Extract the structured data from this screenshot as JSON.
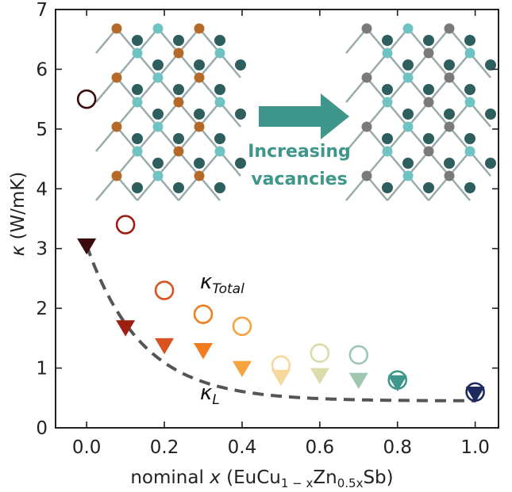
{
  "chart_data": {
    "type": "scatter",
    "xlabel_prefix": "nominal ",
    "xlabel_var": "x",
    "xlabel_formula": "(EuCu",
    "xlabel_sub1": "1 − x",
    "xlabel_mid": "Zn",
    "xlabel_sub2": "0.5x",
    "xlabel_suffix": "Sb)",
    "ylabel_symbol": "κ",
    "ylabel_units": "(W/mK)",
    "xlim": [
      -0.08,
      1.06
    ],
    "ylim": [
      0,
      7
    ],
    "xticks": [
      0.0,
      0.2,
      0.4,
      0.6,
      0.8,
      1.0
    ],
    "xtick_labels": [
      "0.0",
      "0.2",
      "0.4",
      "0.6",
      "0.8",
      "1.0"
    ],
    "yticks": [
      0,
      1,
      2,
      3,
      4,
      5,
      6,
      7
    ],
    "ytick_labels": [
      "0",
      "1",
      "2",
      "3",
      "4",
      "5",
      "6",
      "7"
    ],
    "series": [
      {
        "name": "κ_Total",
        "label_main": "κ",
        "label_sub": "Total",
        "marker": "open-circle",
        "x": [
          0.0,
          0.1,
          0.2,
          0.3,
          0.4,
          0.5,
          0.6,
          0.7,
          0.8,
          1.0
        ],
        "y": [
          5.5,
          3.4,
          2.3,
          1.9,
          1.7,
          1.05,
          1.25,
          1.22,
          0.8,
          0.6
        ]
      },
      {
        "name": "κ_L",
        "label_main": "κ",
        "label_sub": "L",
        "marker": "filled-triangle-down",
        "x": [
          0.0,
          0.1,
          0.2,
          0.3,
          0.4,
          0.5,
          0.6,
          0.7,
          0.8,
          1.0
        ],
        "y": [
          3.05,
          1.68,
          1.38,
          1.3,
          1.0,
          0.85,
          0.88,
          0.8,
          0.76,
          0.57
        ]
      }
    ],
    "point_colors": [
      "#3b0a0a",
      "#9c1f0f",
      "#d9521f",
      "#f07d20",
      "#f5a540",
      "#f7d9a0",
      "#dcdcaa",
      "#9ec7b2",
      "#3f968a",
      "#1e2a5e"
    ],
    "fit_curve": {
      "style": "dashed",
      "color": "#555555",
      "a": 0.45,
      "b": 2.6,
      "c": 7.0
    },
    "inset": {
      "arrow_color": "#3f968a",
      "label_line1": "Increasing",
      "label_line2": "vacancies",
      "atom_colors": {
        "dark": "#2f5e5e",
        "light": "#6fc3c3",
        "copper": "#b56a2a",
        "vacancy": "#7a7a7a"
      }
    }
  }
}
